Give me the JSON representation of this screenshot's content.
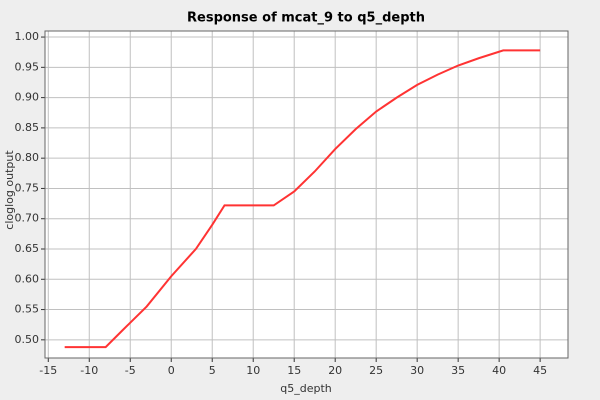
{
  "chart_data": {
    "type": "line",
    "title": "Response of mcat_9 to q5_depth",
    "x_label": "q5_depth",
    "y_label": "cloglog output",
    "xlim": [
      -15.4,
      48.4
    ],
    "ylim": [
      0.47,
      1.01
    ],
    "xticks": [
      -15,
      -10,
      -5,
      0,
      5,
      10,
      15,
      20,
      25,
      30,
      35,
      40,
      45
    ],
    "yticks": [
      {
        "value": 0.5,
        "label": "0.50"
      },
      0.55,
      {
        "value": 0.6,
        "label": "0.60"
      },
      0.65,
      {
        "value": 0.7,
        "label": "0.70"
      },
      0.75,
      {
        "value": 0.8,
        "label": "0.80"
      },
      0.85,
      {
        "value": 0.9,
        "label": "0.90"
      },
      0.95,
      {
        "value": 1.0,
        "label": "1.00"
      }
    ],
    "grid": true,
    "x": [
      -13,
      -8,
      -6,
      -3,
      0,
      3,
      5,
      6.5,
      12.5,
      15,
      17.5,
      20,
      22.5,
      25,
      27.5,
      30,
      32.5,
      35,
      37.5,
      40.5,
      45
    ],
    "series": [
      {
        "name": "mcat_9",
        "color": "#ff3333",
        "values": [
          0.488,
          0.488,
          0.515,
          0.555,
          0.605,
          0.65,
          0.69,
          0.722,
          0.722,
          0.745,
          0.778,
          0.815,
          0.848,
          0.877,
          0.9,
          0.921,
          0.938,
          0.953,
          0.965,
          0.978,
          0.978
        ]
      }
    ]
  }
}
